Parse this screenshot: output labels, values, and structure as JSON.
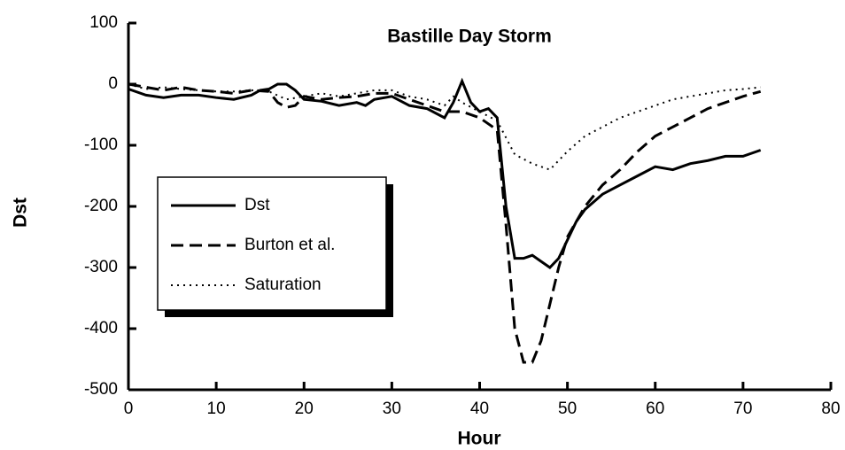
{
  "chart_data": {
    "type": "line",
    "title": "Bastille Day Storm",
    "x_label": "Hour",
    "y_label": "Dst",
    "xlim": [
      0,
      80
    ],
    "xticks": [
      0,
      10,
      20,
      30,
      40,
      50,
      60,
      70,
      80
    ],
    "ylim": [
      -500,
      100
    ],
    "yticks": [
      -500,
      -400,
      -300,
      -200,
      -100,
      0,
      100
    ],
    "grid": false,
    "legend": "left",
    "series": [
      {
        "name": "Dst",
        "color": "#000000",
        "dash": "solid",
        "x": [
          0,
          2,
          4,
          6,
          8,
          10,
          12,
          14,
          15,
          16,
          17,
          18,
          19,
          20,
          22,
          24,
          26,
          27,
          28,
          30,
          32,
          34,
          36,
          37,
          38,
          39,
          40,
          41,
          42,
          43,
          44,
          45,
          46,
          47,
          48,
          49,
          50,
          51,
          52,
          54,
          56,
          58,
          60,
          62,
          64,
          66,
          68,
          70,
          72
        ],
        "values": [
          -8,
          -18,
          -22,
          -18,
          -18,
          -22,
          -25,
          -18,
          -10,
          -8,
          0,
          0,
          -10,
          -25,
          -28,
          -35,
          -30,
          -35,
          -25,
          -20,
          -35,
          -40,
          -55,
          -30,
          5,
          -30,
          -45,
          -40,
          -55,
          -200,
          -285,
          -285,
          -280,
          -290,
          -300,
          -285,
          -255,
          -225,
          -205,
          -180,
          -165,
          -150,
          -135,
          -140,
          -130,
          -125,
          -118,
          -118,
          -108
        ]
      },
      {
        "name": "Burton et al.",
        "color": "#000000",
        "dash": "dashed",
        "x": [
          0,
          2,
          4,
          6,
          8,
          10,
          12,
          14,
          16,
          17,
          18,
          19,
          20,
          22,
          24,
          26,
          28,
          30,
          32,
          34,
          36,
          38,
          40,
          42,
          43,
          44,
          45,
          46,
          47,
          48,
          49,
          50,
          52,
          54,
          56,
          58,
          60,
          62,
          64,
          66,
          68,
          70,
          72
        ],
        "values": [
          0,
          -5,
          -10,
          -5,
          -10,
          -12,
          -15,
          -10,
          -12,
          -30,
          -38,
          -35,
          -20,
          -25,
          -22,
          -20,
          -15,
          -15,
          -25,
          -35,
          -45,
          -45,
          -55,
          -75,
          -230,
          -400,
          -455,
          -455,
          -420,
          -360,
          -300,
          -250,
          -200,
          -165,
          -140,
          -110,
          -85,
          -70,
          -55,
          -40,
          -30,
          -20,
          -12
        ]
      },
      {
        "name": "Saturation",
        "color": "#000000",
        "dash": "dotted",
        "x": [
          0,
          2,
          4,
          6,
          8,
          10,
          12,
          14,
          16,
          18,
          20,
          22,
          24,
          26,
          28,
          30,
          32,
          34,
          36,
          37,
          38,
          40,
          42,
          44,
          46,
          48,
          50,
          52,
          54,
          56,
          58,
          60,
          62,
          64,
          66,
          68,
          70,
          72
        ],
        "values": [
          0,
          -8,
          -5,
          -8,
          -10,
          -12,
          -12,
          -10,
          -12,
          -25,
          -20,
          -15,
          -20,
          -15,
          -10,
          -10,
          -20,
          -25,
          -35,
          -20,
          -30,
          -45,
          -60,
          -115,
          -130,
          -140,
          -110,
          -85,
          -70,
          -55,
          -45,
          -35,
          -25,
          -20,
          -15,
          -10,
          -8,
          -5
        ]
      }
    ]
  }
}
